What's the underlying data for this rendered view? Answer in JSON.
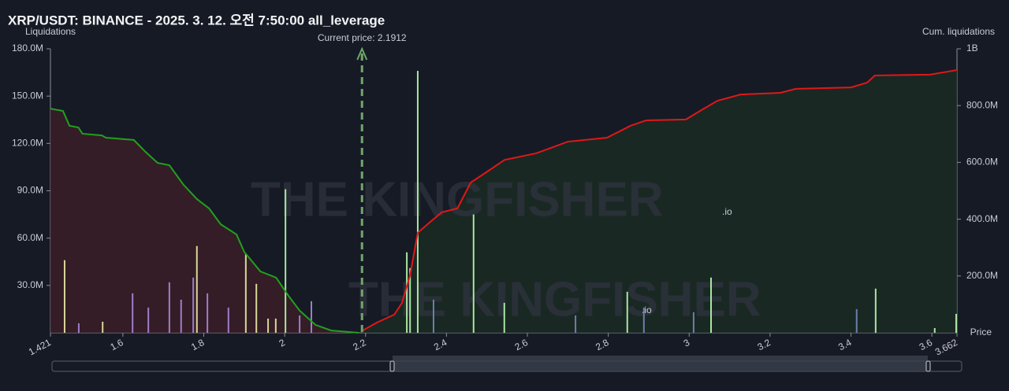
{
  "chart_data": {
    "type": "liquidation",
    "title": "XRP/USDT: BINANCE - 2025. 3. 12. 오전 7:50:00 all_leverage",
    "y_label": "Liquidations",
    "y2_label": "Cum. liquidations",
    "x_label": "Price",
    "watermark": "THE KINGFISHER",
    "watermark_suffix": ".io",
    "annotation": {
      "value": 2.1912,
      "label": "Current price: 2.1912"
    },
    "xlim": [
      1.421,
      3.662
    ],
    "xticks": [
      1.421,
      1.6,
      1.8,
      2,
      2.2,
      2.4,
      2.6,
      2.8,
      3,
      3.2,
      3.4,
      3.6,
      3.662
    ],
    "ylim": [
      0,
      180000000
    ],
    "yticks": [
      {
        "value": 30000000,
        "label": "30.0M"
      },
      {
        "value": 60000000,
        "label": "60.0M"
      },
      {
        "value": 90000000,
        "label": "90.0M"
      },
      {
        "value": 120000000,
        "label": "120.0M"
      },
      {
        "value": 150000000,
        "label": "150.0M"
      },
      {
        "value": 180000000,
        "label": "180.0M"
      }
    ],
    "y2lim": [
      0,
      1000000000
    ],
    "y2ticks": [
      {
        "value": 200000000,
        "label": "200.0M"
      },
      {
        "value": 400000000,
        "label": "400.0M"
      },
      {
        "value": 600000000,
        "label": "600.0M"
      },
      {
        "value": 800000000,
        "label": "800.0M"
      },
      {
        "value": 1000000000,
        "label": "1B"
      }
    ],
    "bars": {
      "x": [
        1.456,
        1.491,
        1.55,
        1.624,
        1.663,
        1.715,
        1.744,
        1.774,
        1.783,
        1.809,
        1.861,
        1.904,
        1.93,
        1.959,
        1.978,
        2.002,
        2.037,
        2.066,
        2.302,
        2.31,
        2.329,
        2.368,
        2.467,
        2.543,
        2.719,
        2.847,
        2.888,
        3.011,
        3.054,
        3.414,
        3.461,
        3.607,
        3.66
      ],
      "values": [
        46000000,
        6000000,
        7000000,
        25000000,
        16000000,
        32000000,
        21000000,
        35000000,
        55000000,
        25000000,
        16000000,
        50000000,
        31000000,
        9000000,
        9000000,
        91000000,
        11000000,
        20000000,
        51000000,
        41000000,
        166000000,
        21000000,
        75000000,
        19000000,
        11000000,
        26000000,
        16000000,
        13000000,
        35000000,
        15000000,
        28000000,
        3000000,
        12000000
      ],
      "colors": [
        "#d8d79a",
        "#9b7fc9",
        "#d8d79a",
        "#9b7fc9",
        "#9b7fc9",
        "#9b7fc9",
        "#9b7fc9",
        "#9b7fc9",
        "#d8d79a",
        "#9b7fc9",
        "#9b7fc9",
        "#d8d79a",
        "#d8d79a",
        "#d8d79a",
        "#d8d79a",
        "#a8e6a0",
        "#9b7fc9",
        "#9b7fc9",
        "#a8e6a0",
        "#a8e6a0",
        "#a8e6a0",
        "#6c7fa8",
        "#a8e6a0",
        "#a8e6a0",
        "#6c7fa8",
        "#a8e6a0",
        "#6c7fa8",
        "#6c7fa8",
        "#a8e6a0",
        "#6c7fa8",
        "#a8e6a0",
        "#a8e6a0",
        "#a8e6a0"
      ]
    },
    "series": [
      {
        "axis": "y2",
        "color": "#22a01e",
        "fill": "#3a1f27",
        "x": [
          1.421,
          1.452,
          1.468,
          1.49,
          1.5,
          1.548,
          1.558,
          1.627,
          1.656,
          1.686,
          1.715,
          1.75,
          1.783,
          1.813,
          1.842,
          1.881,
          1.9,
          1.94,
          1.979,
          2.008,
          2.037,
          2.076,
          2.115,
          2.183
        ],
        "values": [
          789000000,
          781000000,
          729000000,
          723000000,
          701000000,
          695000000,
          687000000,
          679000000,
          637000000,
          598000000,
          590000000,
          521000000,
          471000000,
          438000000,
          382000000,
          346000000,
          285000000,
          216000000,
          194000000,
          133000000,
          78000000,
          28000000,
          8000000,
          0
        ]
      },
      {
        "axis": "y2",
        "color": "#e01818",
        "fill": "#1b2c25",
        "x": [
          2.193,
          2.228,
          2.271,
          2.29,
          2.31,
          2.329,
          2.358,
          2.388,
          2.427,
          2.46,
          2.495,
          2.544,
          2.622,
          2.7,
          2.797,
          2.855,
          2.894,
          2.992,
          3.03,
          3.07,
          3.127,
          3.225,
          3.264,
          3.4,
          3.44,
          3.459,
          3.595,
          3.662
        ],
        "values": [
          8000000,
          36000000,
          64000000,
          105000000,
          202000000,
          352000000,
          388000000,
          424000000,
          438000000,
          529000000,
          562000000,
          609000000,
          632000000,
          673000000,
          687000000,
          729000000,
          748000000,
          751000000,
          784000000,
          817000000,
          839000000,
          845000000,
          859000000,
          864000000,
          881000000,
          906000000,
          909000000,
          925000000
        ]
      }
    ]
  }
}
